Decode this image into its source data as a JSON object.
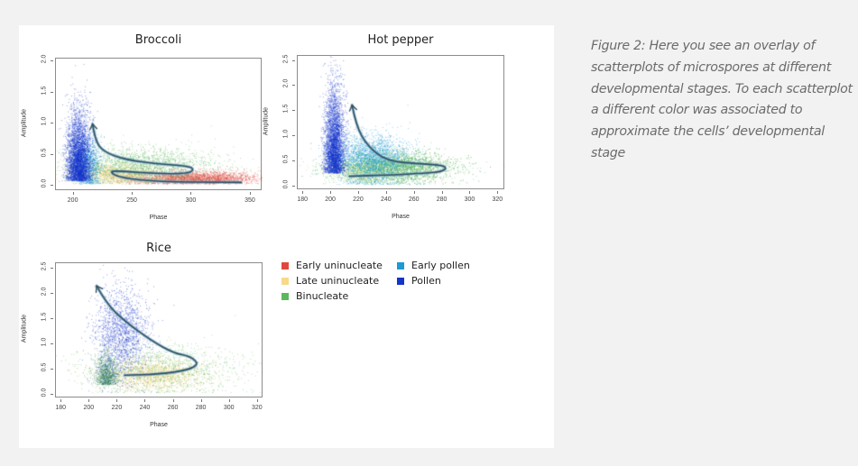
{
  "caption": "Figure 2: Here you see an overlay of scatterplots of  microspores at different developmental stages. To each scatterplot a different color was associated to approximate the cells’ developmental stage",
  "legend": [
    {
      "label": "Early uninucleate",
      "color": "#e0483f"
    },
    {
      "label": "Late uninucleate",
      "color": "#f8d98a"
    },
    {
      "label": "Binucleate",
      "color": "#5cb85c"
    },
    {
      "label": "Early pollen",
      "color": "#1b9ad6"
    },
    {
      "label": "Pollen",
      "color": "#1334c9"
    }
  ],
  "chart_data": [
    {
      "type": "scatter",
      "title": "Broccoli",
      "xlabel": "Phase",
      "ylabel": "Amplitude",
      "xlim": [
        185,
        360
      ],
      "ylim": [
        -0.08,
        2.05
      ],
      "xticks": [
        200,
        250,
        300,
        350
      ],
      "yticks": [
        "0.0",
        "0.5",
        "1.0",
        "1.5",
        "2.0"
      ],
      "ytick_values": [
        0,
        0.5,
        1.0,
        1.5,
        2.0
      ],
      "series": [
        {
          "name": "Early uninucleate",
          "color": "#e0483f",
          "n": 2600,
          "cx": 300,
          "cy": 0.13,
          "sx": 28,
          "sy": 0.06,
          "skew": 0
        },
        {
          "name": "Late uninucleate",
          "color": "#f3cf6b",
          "n": 1200,
          "cx": 235,
          "cy": 0.2,
          "sx": 18,
          "sy": 0.08,
          "skew": 0
        },
        {
          "name": "Binucleate",
          "color": "#5cb85c",
          "n": 2200,
          "cx": 255,
          "cy": 0.33,
          "sx": 32,
          "sy": 0.15,
          "skew": 0
        },
        {
          "name": "Early pollen",
          "color": "#1b9ad6",
          "n": 900,
          "cx": 213,
          "cy": 0.35,
          "sx": 5,
          "sy": 0.22,
          "skew": 0
        },
        {
          "name": "Pollen",
          "color": "#1334c9",
          "n": 4200,
          "cx": 204,
          "cy": 0.3,
          "sx": 5,
          "sy": 0.35,
          "skew": 1
        }
      ],
      "trajectory": [
        [
          216,
          1.0
        ],
        [
          218,
          0.75
        ],
        [
          225,
          0.55
        ],
        [
          245,
          0.42
        ],
        [
          270,
          0.36
        ],
        [
          298,
          0.32
        ],
        [
          302,
          0.26
        ],
        [
          296,
          0.2
        ],
        [
          270,
          0.2
        ],
        [
          240,
          0.24
        ],
        [
          230,
          0.24
        ],
        [
          238,
          0.14
        ],
        [
          270,
          0.07
        ],
        [
          342,
          0.06
        ]
      ],
      "arrow_at_start": true
    },
    {
      "type": "scatter",
      "title": "Hot pepper",
      "xlabel": "Phase",
      "ylabel": "Amplitude",
      "xlim": [
        176,
        325
      ],
      "ylim": [
        -0.08,
        2.6
      ],
      "xticks": [
        180,
        200,
        220,
        240,
        260,
        280,
        300,
        320
      ],
      "yticks": [
        "0.0",
        "0.5",
        "1.0",
        "1.5",
        "2.0",
        "2.5"
      ],
      "ytick_values": [
        0,
        0.5,
        1.0,
        1.5,
        2.0,
        2.5
      ],
      "series": [
        {
          "name": "Binucleate",
          "color": "#5cb85c",
          "n": 3800,
          "cx": 245,
          "cy": 0.38,
          "sx": 22,
          "sy": 0.15,
          "skew": 0
        },
        {
          "name": "Late uninucleate",
          "color": "#c8dc6a",
          "n": 900,
          "cx": 225,
          "cy": 0.3,
          "sx": 14,
          "sy": 0.1,
          "skew": 0
        },
        {
          "name": "Early pollen",
          "color": "#1b9ad6",
          "n": 2600,
          "cx": 228,
          "cy": 0.55,
          "sx": 14,
          "sy": 0.25,
          "skew": 0
        },
        {
          "name": "Pollen",
          "color": "#1334c9",
          "n": 3800,
          "cx": 202,
          "cy": 0.6,
          "sx": 3.5,
          "sy": 0.55,
          "skew": 1
        }
      ],
      "trajectory": [
        [
          215,
          1.62
        ],
        [
          218,
          1.2
        ],
        [
          226,
          0.8
        ],
        [
          240,
          0.5
        ],
        [
          262,
          0.45
        ],
        [
          280,
          0.42
        ],
        [
          283,
          0.35
        ],
        [
          278,
          0.28
        ],
        [
          262,
          0.25
        ],
        [
          240,
          0.22
        ],
        [
          213,
          0.2
        ]
      ],
      "arrow_at_start": true
    },
    {
      "type": "scatter",
      "title": "Rice",
      "xlabel": "Phase",
      "ylabel": "Amplitude",
      "xlim": [
        176,
        324
      ],
      "ylim": [
        -0.08,
        2.6
      ],
      "xticks": [
        180,
        200,
        220,
        240,
        260,
        280,
        300,
        320
      ],
      "yticks": [
        "0.0",
        "0.5",
        "1.0",
        "1.5",
        "2.0",
        "2.5"
      ],
      "ytick_values": [
        0,
        0.5,
        1.0,
        1.5,
        2.0,
        2.5
      ],
      "series": [
        {
          "name": "Late uninucleate",
          "color": "#f3cf6b",
          "n": 1500,
          "cx": 245,
          "cy": 0.4,
          "sx": 18,
          "sy": 0.15,
          "skew": 0
        },
        {
          "name": "Binucleate",
          "color": "#5cb85c",
          "n": 1400,
          "cx": 250,
          "cy": 0.5,
          "sx": 28,
          "sy": 0.25,
          "skew": 0
        },
        {
          "name": "Early pollen",
          "color": "#2e7d5b",
          "n": 900,
          "cx": 212,
          "cy": 0.32,
          "sx": 4,
          "sy": 0.2,
          "skew": 1
        },
        {
          "name": "Pollen",
          "color": "#1334c9",
          "n": 1700,
          "cx": 222,
          "cy": 1.2,
          "sx": 10,
          "sy": 0.45,
          "skew": 0
        }
      ],
      "trajectory": [
        [
          205,
          2.15
        ],
        [
          212,
          1.8
        ],
        [
          225,
          1.45
        ],
        [
          245,
          1.05
        ],
        [
          260,
          0.82
        ],
        [
          272,
          0.75
        ],
        [
          278,
          0.6
        ],
        [
          270,
          0.48
        ],
        [
          250,
          0.4
        ],
        [
          225,
          0.38
        ]
      ],
      "arrow_at_start": true
    }
  ]
}
